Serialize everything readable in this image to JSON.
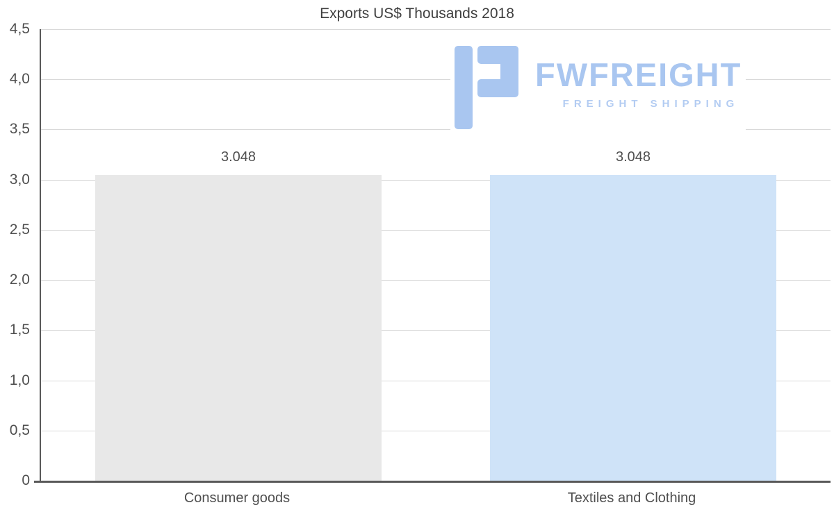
{
  "title": "Exports US$ Thousands 2018",
  "logo": {
    "name": "FWFREIGHT",
    "tagline": "FREIGHT SHIPPING",
    "color": "#a9c6f0"
  },
  "chart_data": {
    "type": "bar",
    "title": "Exports US$ Thousands 2018",
    "categories": [
      "Consumer goods",
      "Textiles and Clothing"
    ],
    "values": [
      3.048,
      3.048
    ],
    "value_labels": [
      "3.048",
      "3.048"
    ],
    "series_unit": "US$ Thousands",
    "xlabel": "",
    "ylabel": "",
    "ylim": [
      0,
      4.5
    ],
    "ytick_step": 0.5,
    "ytick_labels": [
      "0",
      "0,5",
      "1,0",
      "1,5",
      "2,0",
      "2,5",
      "3,0",
      "3,5",
      "4,0",
      "4,5"
    ],
    "grid": true,
    "legend": "none",
    "bar_colors": [
      "#e8e8e8",
      "#cfe3f8"
    ],
    "gridline_color": "#d9d9d9",
    "axis_color": "#595959",
    "text_color": "#4f4f4f"
  }
}
